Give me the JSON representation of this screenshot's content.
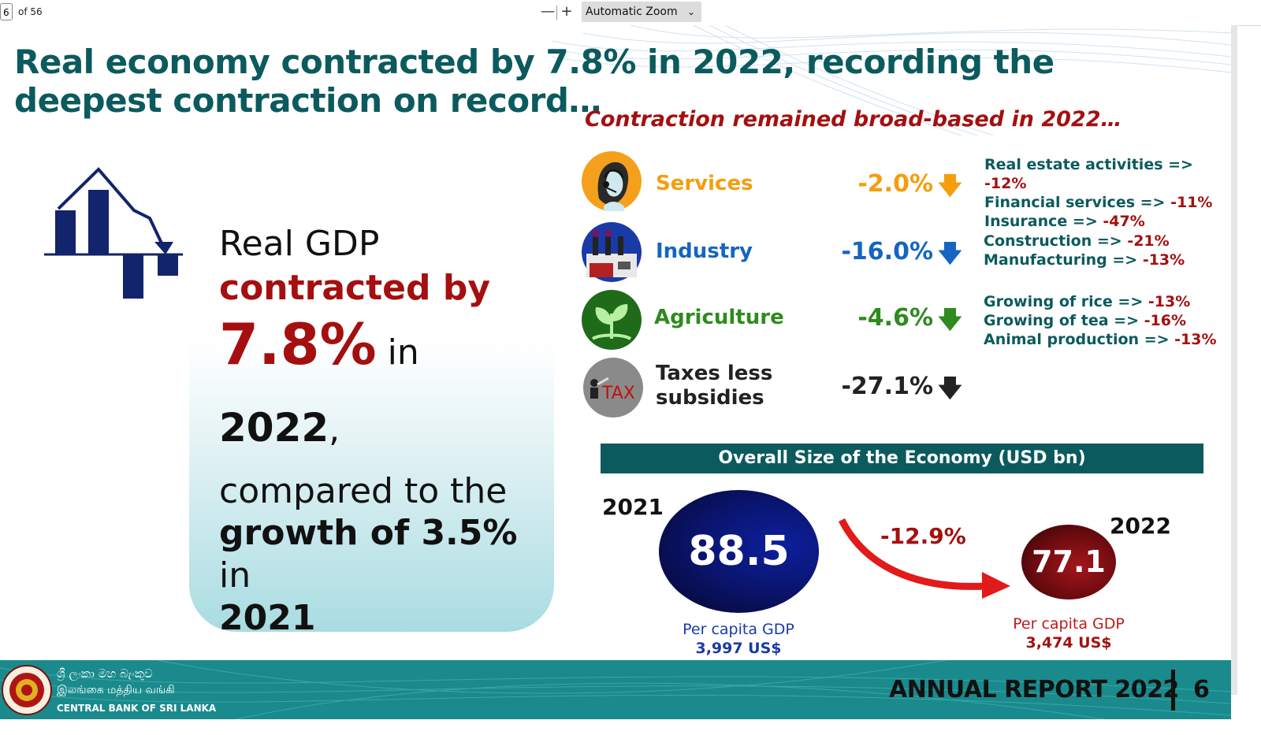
{
  "viewer": {
    "page_number": "6",
    "page_count": "of 56",
    "zoom_out": "—",
    "zoom_in": "+",
    "zoom_mode": "Automatic Zoom",
    "chevron": "⌄"
  },
  "slide": {
    "title": "Real economy contracted by 7.8% in 2022, recording the deepest contraction on record…",
    "subheading": "Contraction remained broad-based in 2022…",
    "gdp_block": {
      "line1": "Real GDP",
      "line2": "contracted by",
      "pct": "7.8%",
      "in1": " in ",
      "year1": "2022",
      "comma": ",",
      "line4": "compared to the",
      "growth": "growth of 3.5%",
      "in2": " in",
      "year2": "2021"
    },
    "sectors": [
      {
        "name": "Services",
        "value": "-2.0%",
        "arrow": "🡇",
        "color": "#f59d0d",
        "icon": "call-center-agent-icon"
      },
      {
        "name": "Industry",
        "value": "-16.0%",
        "arrow": "🡇",
        "color": "#1565c0",
        "icon": "factory-icon"
      },
      {
        "name": "Agriculture",
        "value": "-4.6%",
        "arrow": "🡇",
        "color": "#2e8b1e",
        "icon": "plant-sprout-icon"
      },
      {
        "name_line1": "Taxes less",
        "name_line2": "subsidies",
        "value": "-27.1%",
        "arrow": "🡇",
        "color": "#222222",
        "icon": "tax-icon"
      }
    ],
    "sub_sectors": {
      "services": [
        {
          "label": "Real estate activities => ",
          "value": "-12%"
        },
        {
          "label": "Financial services => ",
          "value": "-11%"
        },
        {
          "label": "Insurance => ",
          "value": "-47%"
        }
      ],
      "industry": [
        {
          "label": "Construction => ",
          "value": "-21%"
        },
        {
          "label": "Manufacturing => ",
          "value": "-13%"
        }
      ],
      "agriculture": [
        {
          "label": "Growing of rice => ",
          "value": "-13%"
        },
        {
          "label": "Growing of tea => ",
          "value": "-16%"
        },
        {
          "label": "Animal production => ",
          "value": "-13%"
        }
      ]
    },
    "economy": {
      "header": "Overall Size of the Economy (USD bn)",
      "y2021": {
        "year": "2021",
        "value": "88.5",
        "pc_label": "Per capita GDP",
        "pc_value": "3,997 US$"
      },
      "y2022": {
        "year": "2022",
        "value": "77.1",
        "pc_label": "Per capita GDP",
        "pc_value": "3,474 US$"
      },
      "change": "-12.9%"
    },
    "footer": {
      "bank_sinhala": "ශ්‍රී ලංකා මහ බැංකුව",
      "bank_tamil": "இலங்கை மத்திய வங்கி",
      "bank_english": "CENTRAL BANK OF SRI LANKA",
      "report": "ANNUAL REPORT 2022",
      "page": "6"
    }
  },
  "colors": {
    "teal": "#0b5a5e",
    "dark_red": "#a50f0f",
    "navy": "#0a1a5c"
  }
}
